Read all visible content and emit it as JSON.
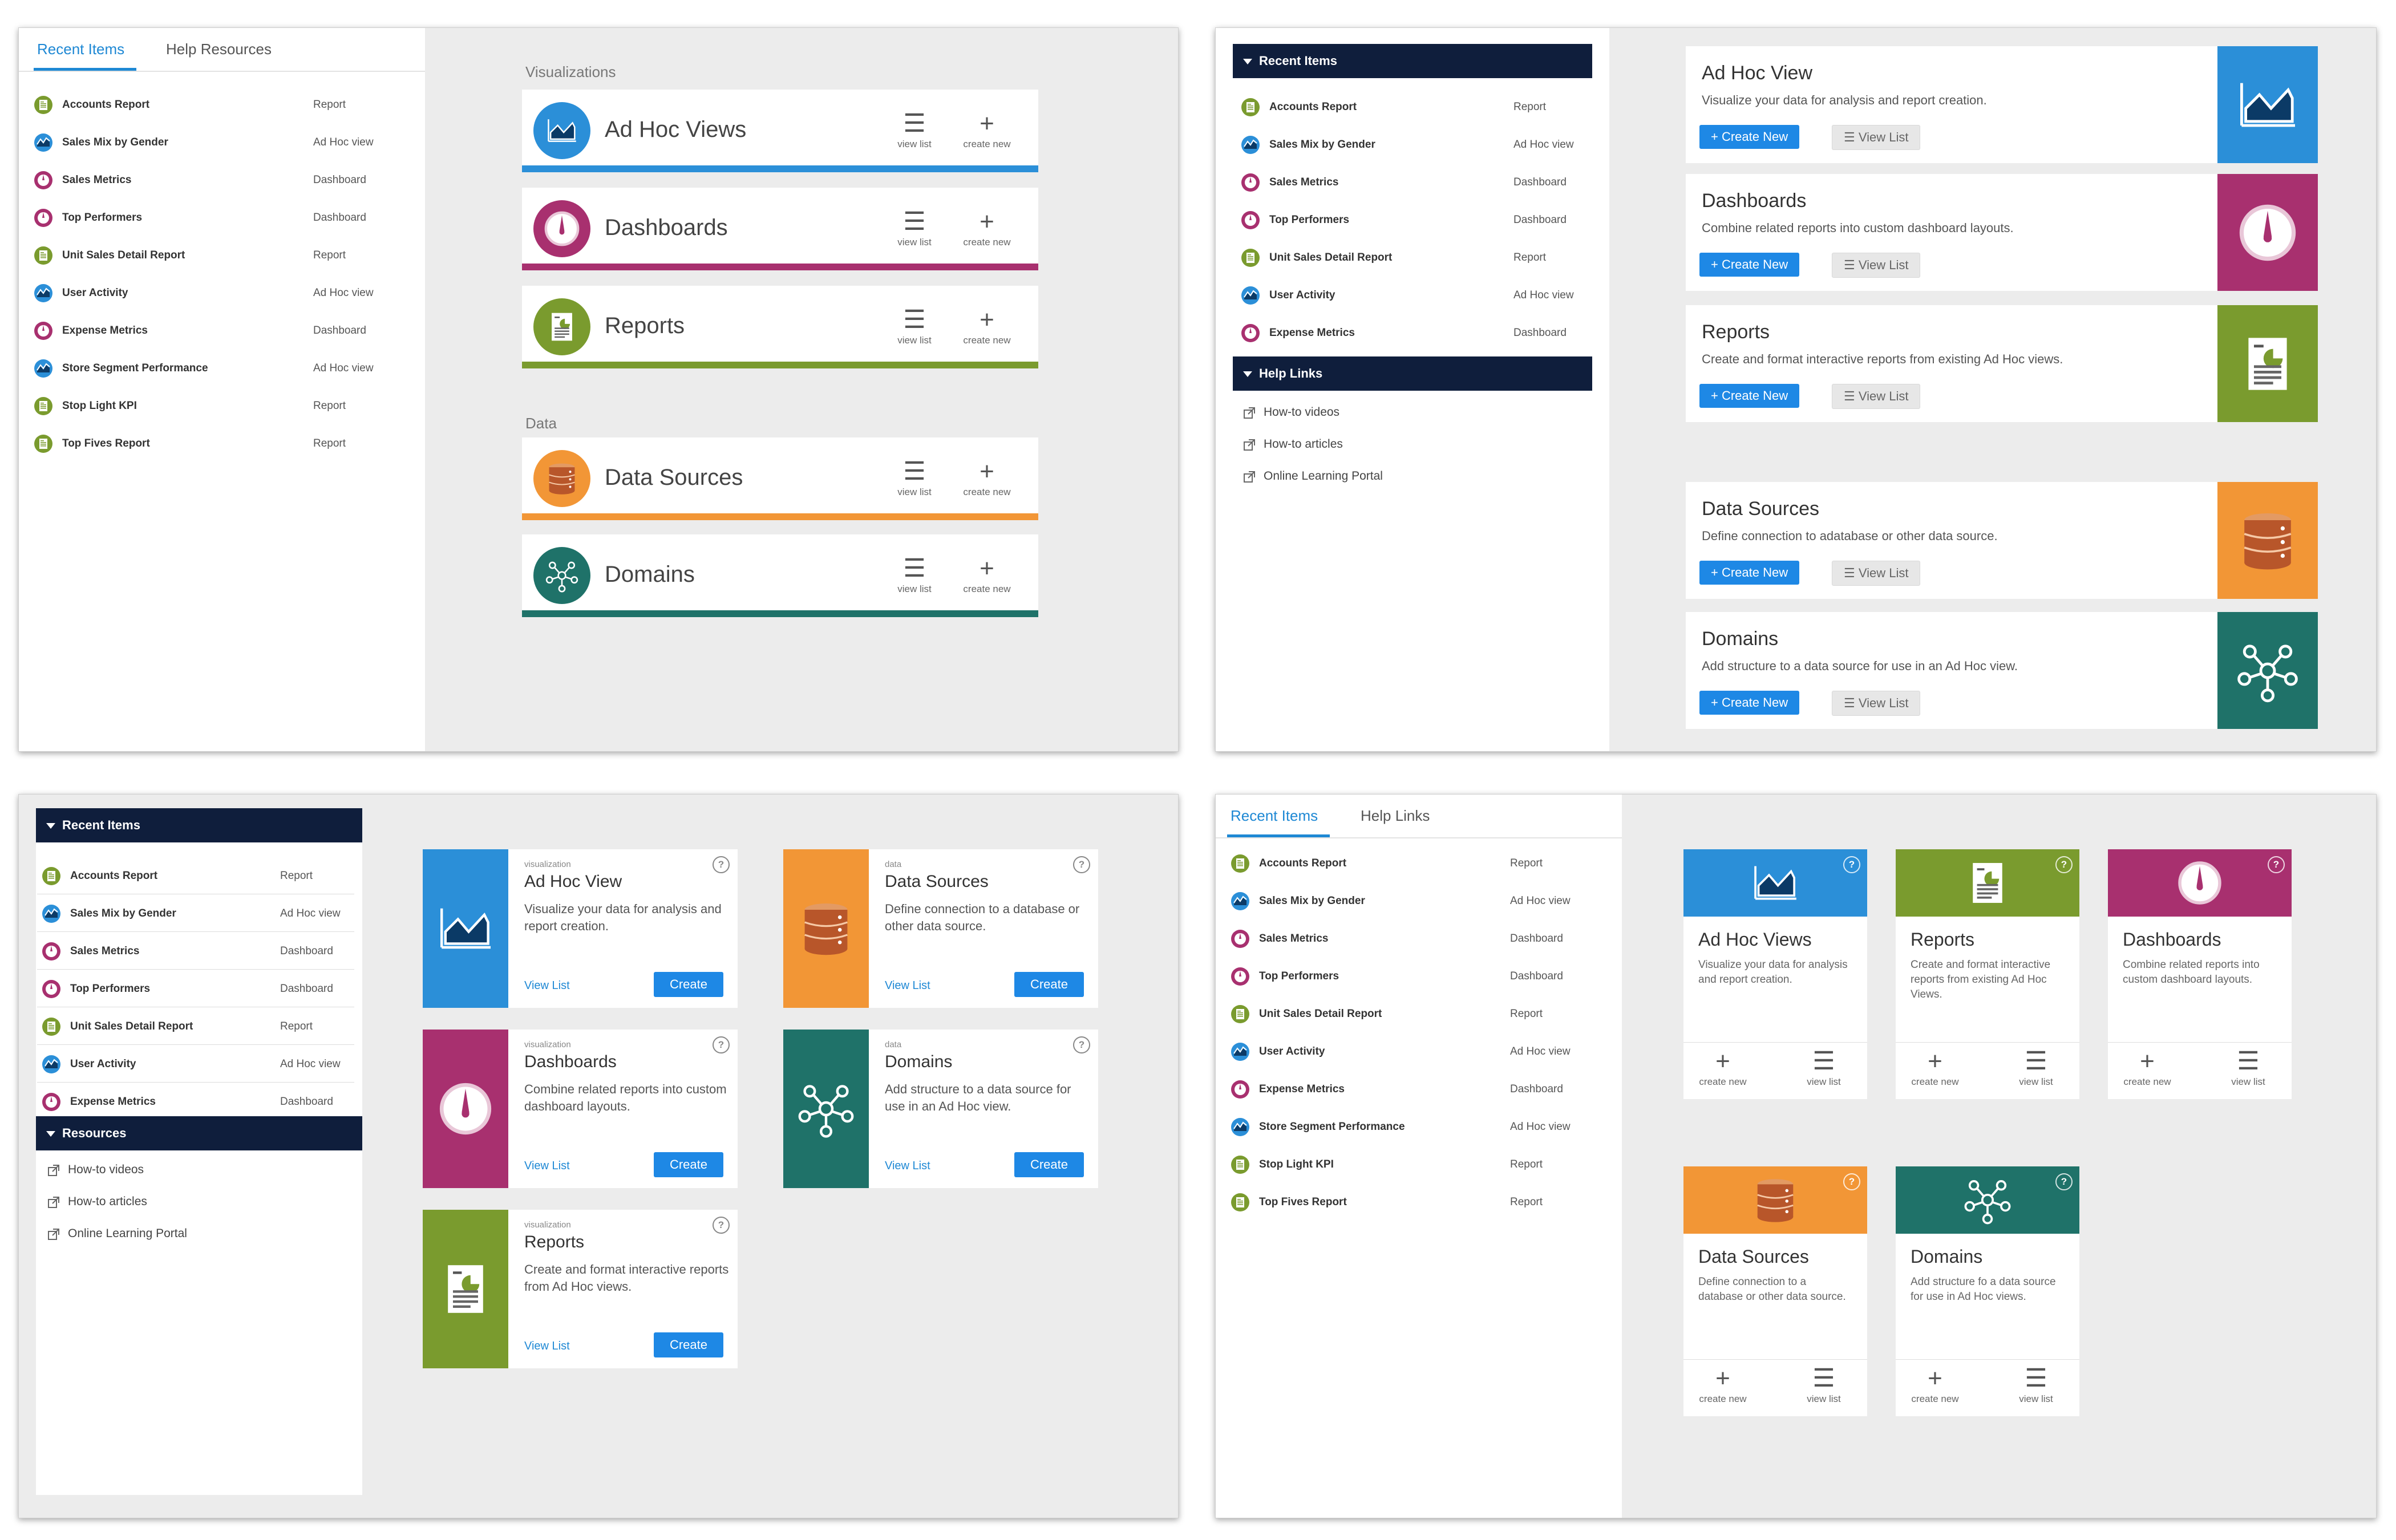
{
  "colors": {
    "adhoc": "#2b8fd8",
    "dashboards": "#a8306f",
    "reports": "#7a9b2e",
    "datasources": "#f29636",
    "domains": "#1f7269",
    "accent": "#1e88d4",
    "header": "#0f1e3c"
  },
  "recent_items": [
    {
      "name": "Accounts Report",
      "type": "Report",
      "icon": "report-icon"
    },
    {
      "name": "Sales Mix by Gender",
      "type": "Ad Hoc view",
      "icon": "adhoc-view-icon"
    },
    {
      "name": "Sales Metrics",
      "type": "Dashboard",
      "icon": "dashboard-icon"
    },
    {
      "name": "Top Performers",
      "type": "Dashboard",
      "icon": "dashboard-icon"
    },
    {
      "name": "Unit Sales Detail Report",
      "type": "Report",
      "icon": "report-icon"
    },
    {
      "name": "User Activity",
      "type": "Ad Hoc view",
      "icon": "adhoc-view-icon"
    },
    {
      "name": "Expense Metrics",
      "type": "Dashboard",
      "icon": "dashboard-icon"
    },
    {
      "name": "Store Segment Performance",
      "type": "Ad Hoc view",
      "icon": "adhoc-view-icon"
    },
    {
      "name": "Stop Light KPI",
      "type": "Report",
      "icon": "report-icon"
    },
    {
      "name": "Top Fives Report",
      "type": "Report",
      "icon": "report-icon"
    }
  ],
  "panel1": {
    "tabs": [
      "Recent Items",
      "Help Resources"
    ],
    "section_visualizations": "Visualizations",
    "section_data": "Data",
    "cards": [
      {
        "title": "Ad Hoc Views",
        "view": "view list",
        "create": "create new",
        "icon": "adhoc-view-icon"
      },
      {
        "title": "Dashboards",
        "view": "view list",
        "create": "create new",
        "icon": "dashboard-icon"
      },
      {
        "title": "Reports",
        "view": "view list",
        "create": "create new",
        "icon": "report-icon"
      },
      {
        "title": "Data Sources",
        "view": "view list",
        "create": "create new",
        "icon": "database-icon"
      },
      {
        "title": "Domains",
        "view": "view list",
        "create": "create new",
        "icon": "network-icon"
      }
    ]
  },
  "panel2": {
    "recent_header": "Recent Items",
    "help_header": "Help Links",
    "links": [
      "How-to videos",
      "How-to articles",
      "Online Learning Portal"
    ],
    "cards": [
      {
        "title": "Ad Hoc View",
        "desc": "Visualize your data for analysis and report creation.",
        "create": "Create New",
        "view": "View List"
      },
      {
        "title": "Dashboards",
        "desc": "Combine related reports into custom dashboard layouts.",
        "create": "Create New",
        "view": "View List"
      },
      {
        "title": "Reports",
        "desc": "Create and format interactive reports from existing Ad Hoc views.",
        "create": "Create New",
        "view": "View List"
      },
      {
        "title": "Data Sources",
        "desc": "Define connection to adatabase or other data source.",
        "create": "Create New",
        "view": "View List"
      },
      {
        "title": "Domains",
        "desc": "Add structure to a data source for use in an Ad Hoc view.",
        "create": "Create New",
        "view": "View List"
      }
    ]
  },
  "panel3": {
    "recent_header": "Recent Items",
    "resources_header": "Resources",
    "links": [
      "How-to videos",
      "How-to articles",
      "Online Learning Portal"
    ],
    "cards": [
      {
        "cat": "visualization",
        "title": "Ad Hoc View",
        "desc": "Visualize your data for analysis and report creation.",
        "view": "View List",
        "create": "Create"
      },
      {
        "cat": "data",
        "title": "Data Sources",
        "desc": "Define connection to a database or other data source.",
        "view": "View List",
        "create": "Create"
      },
      {
        "cat": "visualization",
        "title": "Dashboards",
        "desc": "Combine related reports into custom dashboard layouts.",
        "view": "View List",
        "create": "Create"
      },
      {
        "cat": "data",
        "title": "Domains",
        "desc": "Add structure to a data source for use in an Ad Hoc view.",
        "view": "View List",
        "create": "Create"
      },
      {
        "cat": "visualization",
        "title": "Reports",
        "desc": "Create and format interactive reports from Ad Hoc views.",
        "view": "View List",
        "create": "Create"
      }
    ]
  },
  "panel4": {
    "tabs": [
      "Recent Items",
      "Help Links"
    ],
    "cards": [
      {
        "title": "Ad Hoc Views",
        "desc": "Visualize your data for analysis and report creation.",
        "create": "create new",
        "view": "view list"
      },
      {
        "title": "Reports",
        "desc": "Create and format interactive reports from existing Ad Hoc Views.",
        "create": "create new",
        "view": "view list"
      },
      {
        "title": "Dashboards",
        "desc": "Combine related reports into custom dashboard layouts.",
        "create": "create new",
        "view": "view list"
      },
      {
        "title": "Data Sources",
        "desc": "Define connection to a database or other data source.",
        "create": "create new",
        "view": "view list"
      },
      {
        "title": "Domains",
        "desc": "Add structure fo a data source for use in Ad Hoc views.",
        "create": "create new",
        "view": "view list"
      }
    ]
  },
  "help_glyph": "?"
}
